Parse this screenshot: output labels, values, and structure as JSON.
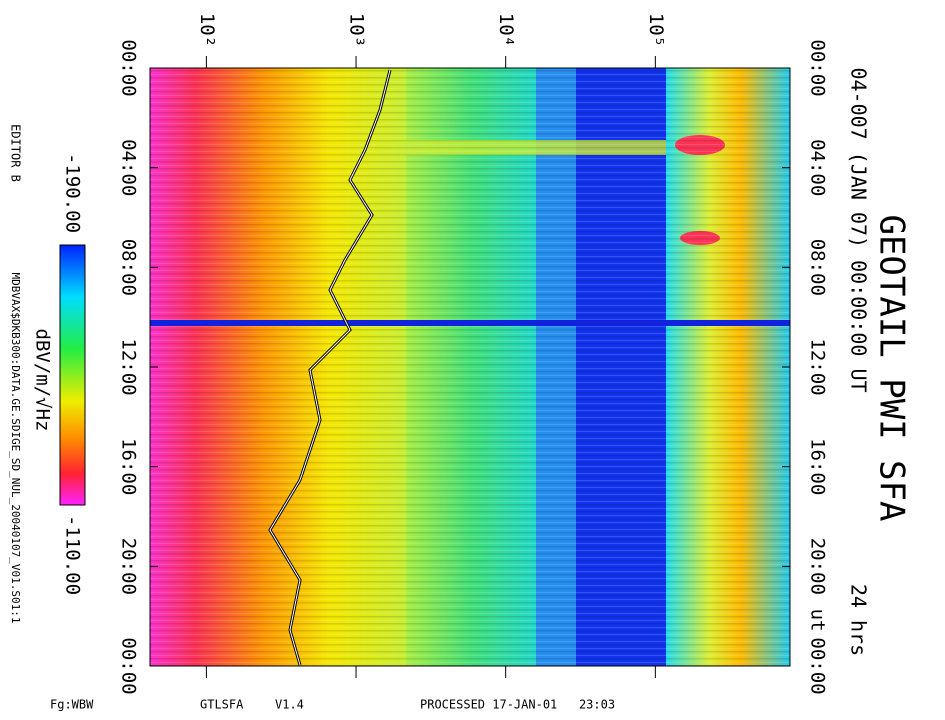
{
  "chart_data": {
    "type": "spectrogram",
    "title": "GEOTAIL PWI SFA",
    "subtitle": "04-007 (JAN 07) 00:00:00 UT",
    "duration": "24 hrs",
    "time_unit": "ut",
    "x_log_scale": true,
    "xlim": [
      42,
      794000
    ],
    "xticks": [
      {
        "value": 100,
        "label": "10²"
      },
      {
        "value": 1000,
        "label": "10³"
      },
      {
        "value": 10000,
        "label": "10⁴"
      },
      {
        "value": 100000,
        "label": "10⁵"
      }
    ],
    "ylim": [
      0,
      24
    ],
    "yticks": [
      {
        "value": 0,
        "label": "00:00"
      },
      {
        "value": 4,
        "label": "04:00"
      },
      {
        "value": 8,
        "label": "08:00"
      },
      {
        "value": 12,
        "label": "12:00"
      },
      {
        "value": 16,
        "label": "16:00"
      },
      {
        "value": 20,
        "label": "20:00"
      },
      {
        "value": 24,
        "label": "00:00"
      }
    ],
    "colorbar": {
      "min_label": "-190.00",
      "max_label": "-110.00",
      "unit": "dBV/m/√Hz"
    },
    "editor": "EDITOR B",
    "source_file": "MDBVAX$DKB300:DATA.GE.SDIGE_SD_NUL_20040107_V01.S01:1",
    "footer": {
      "figure": "Fg:WBW",
      "program": "GTLSFA",
      "version": "V1.4",
      "processed": "PROCESSED 17-JAN-01   23:03"
    }
  }
}
